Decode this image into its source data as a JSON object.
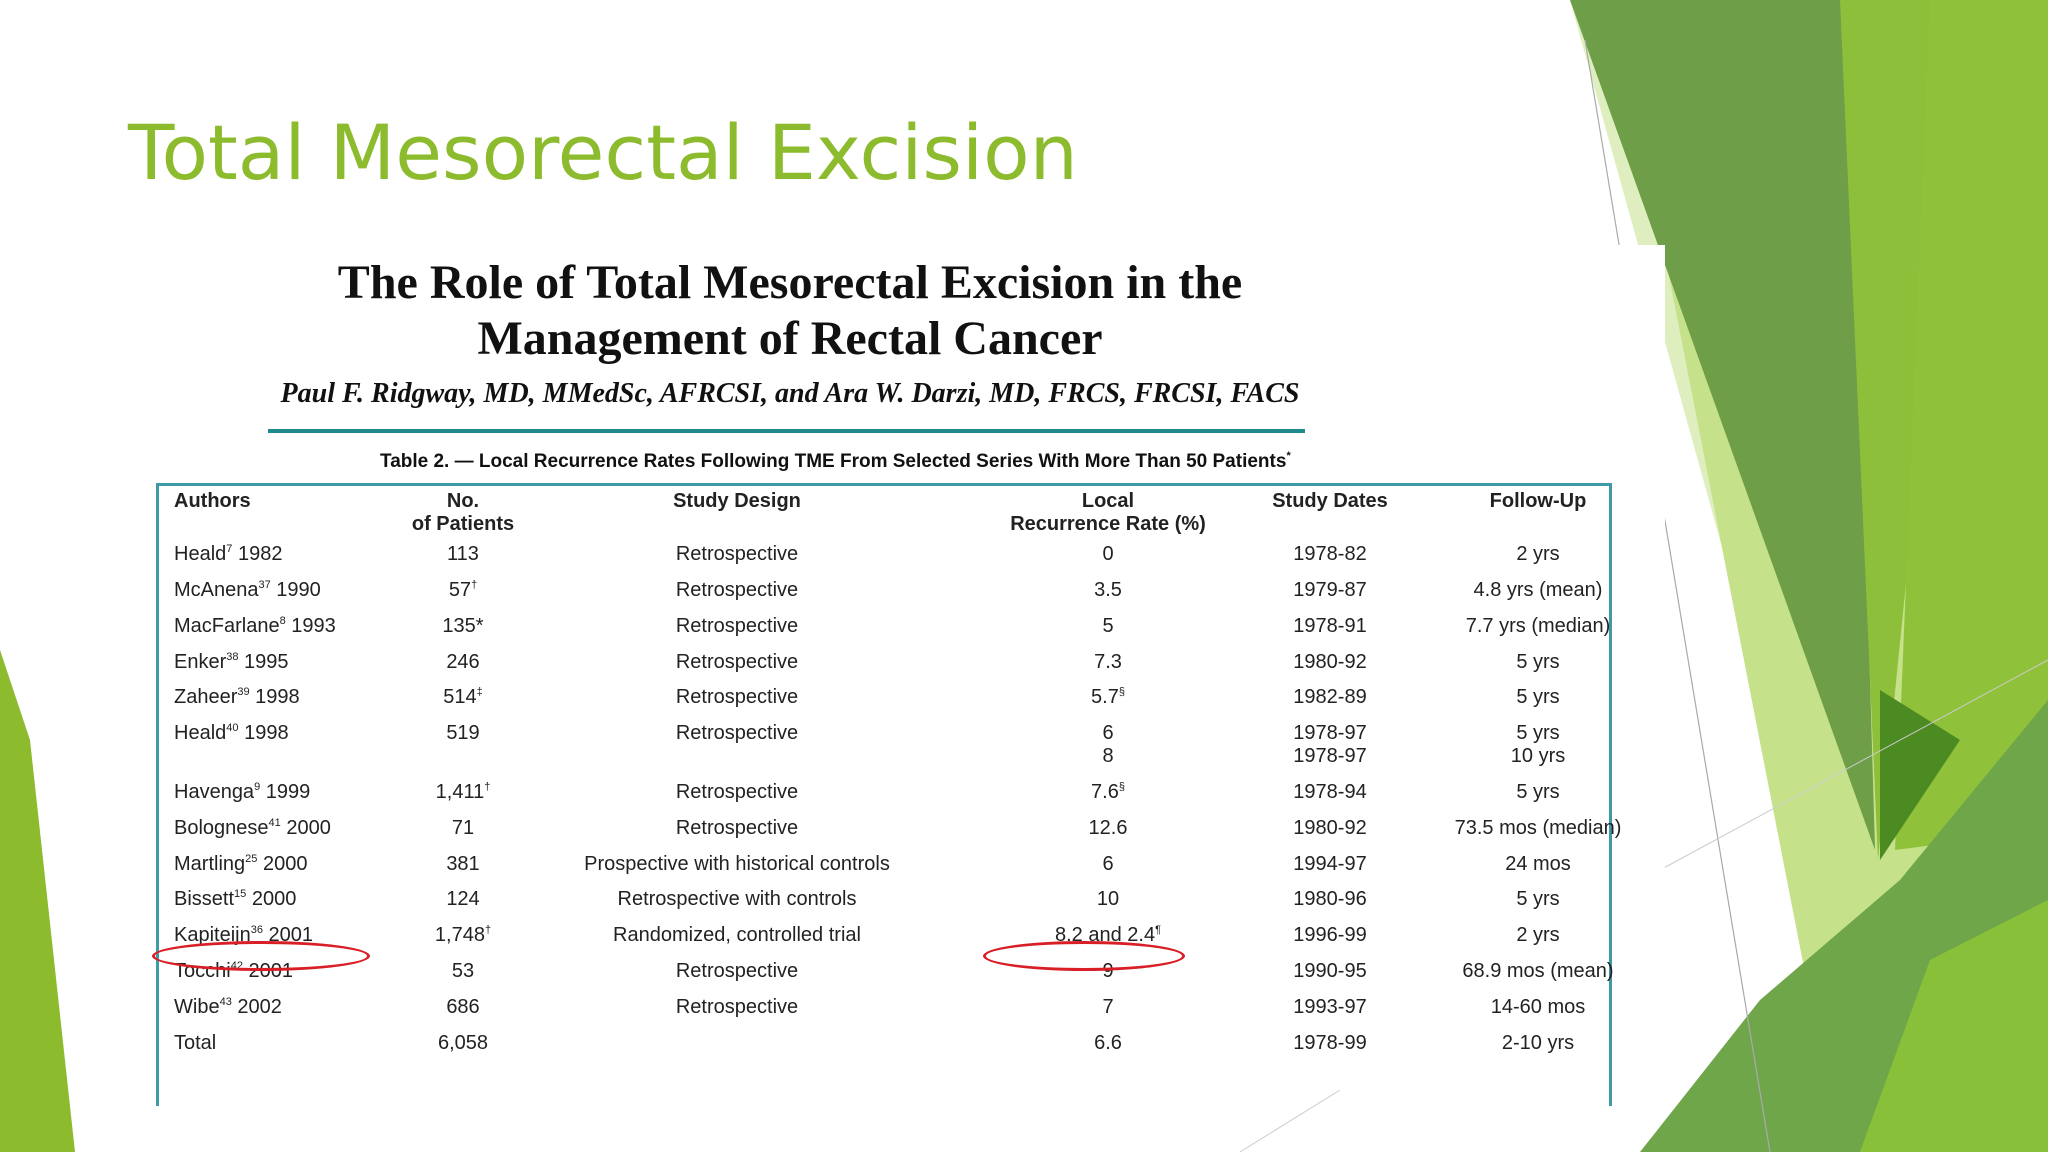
{
  "slide": {
    "title": "Total Mesorectal Excision"
  },
  "paper": {
    "title_line1": "The Role of Total Mesorectal Excision in the",
    "title_line2": "Management of Rectal Cancer",
    "authors": "Paul F. Ridgway, MD, MMedSc, AFRCSI, and Ara W. Darzi, MD, FRCS, FRCSI, FACS"
  },
  "table": {
    "caption": "Table 2. — Local Recurrence Rates Following TME From Selected Series With More Than 50 Patients",
    "caption_mark": "*",
    "headers": [
      {
        "line1": "Authors",
        "line2": ""
      },
      {
        "line1": "No.",
        "line2": "of Patients"
      },
      {
        "line1": "Study Design",
        "line2": ""
      },
      {
        "line1": "Local",
        "line2": "Recurrence Rate (%)"
      },
      {
        "line1": "Study Dates",
        "line2": ""
      },
      {
        "line1": "Follow-Up",
        "line2": ""
      }
    ],
    "rows": [
      {
        "author": "Heald",
        "ref": "7",
        "year": "1982",
        "patients": "113",
        "pmark": "",
        "design": "Retrospective",
        "rate": "0",
        "rmark": "",
        "rate2": "",
        "dates": "1978-82",
        "dates2": "",
        "followup": "2 yrs",
        "followup2": ""
      },
      {
        "author": "McAnena",
        "ref": "37",
        "year": "1990",
        "patients": "57",
        "pmark": "†",
        "design": "Retrospective",
        "rate": "3.5",
        "rmark": "",
        "rate2": "",
        "dates": "1979-87",
        "dates2": "",
        "followup": "4.8 yrs (mean)",
        "followup2": ""
      },
      {
        "author": "MacFarlane",
        "ref": "8",
        "year": "1993",
        "patients": "135*",
        "pmark": "",
        "design": "Retrospective",
        "rate": "5",
        "rmark": "",
        "rate2": "",
        "dates": "1978-91",
        "dates2": "",
        "followup": "7.7 yrs (median)",
        "followup2": ""
      },
      {
        "author": "Enker",
        "ref": "38",
        "year": "1995",
        "patients": "246",
        "pmark": "",
        "design": "Retrospective",
        "rate": "7.3",
        "rmark": "",
        "rate2": "",
        "dates": "1980-92",
        "dates2": "",
        "followup": "5 yrs",
        "followup2": ""
      },
      {
        "author": "Zaheer",
        "ref": "39",
        "year": "1998",
        "patients": "514",
        "pmark": "‡",
        "design": "Retrospective",
        "rate": "5.7",
        "rmark": "§",
        "rate2": "",
        "dates": "1982-89",
        "dates2": "",
        "followup": "5 yrs",
        "followup2": ""
      },
      {
        "author": "Heald",
        "ref": "40",
        "year": "1998",
        "patients": "519",
        "pmark": "",
        "design": "Retrospective",
        "rate": "6",
        "rmark": "",
        "rate2": "8",
        "dates": "1978-97",
        "dates2": "1978-97",
        "followup": "5 yrs",
        "followup2": "10 yrs"
      },
      {
        "author": "Havenga",
        "ref": "9",
        "year": "1999",
        "patients": "1,411",
        "pmark": "†",
        "design": "Retrospective",
        "rate": "7.6",
        "rmark": "§",
        "rate2": "",
        "dates": "1978-94",
        "dates2": "",
        "followup": "5 yrs",
        "followup2": ""
      },
      {
        "author": "Bolognese",
        "ref": "41",
        "year": "2000",
        "patients": "71",
        "pmark": "",
        "design": "Retrospective",
        "rate": "12.6",
        "rmark": "",
        "rate2": "",
        "dates": "1980-92",
        "dates2": "",
        "followup": "73.5 mos (median)",
        "followup2": ""
      },
      {
        "author": "Martling",
        "ref": "25",
        "year": "2000",
        "patients": "381",
        "pmark": "",
        "design": "Prospective with historical controls",
        "rate": "6",
        "rmark": "",
        "rate2": "",
        "dates": "1994-97",
        "dates2": "",
        "followup": "24 mos",
        "followup2": ""
      },
      {
        "author": "Bissett",
        "ref": "15",
        "year": "2000",
        "patients": "124",
        "pmark": "",
        "design": "Retrospective with controls",
        "rate": "10",
        "rmark": "",
        "rate2": "",
        "dates": "1980-96",
        "dates2": "",
        "followup": "5 yrs",
        "followup2": ""
      },
      {
        "author": "Kapiteijn",
        "ref": "36",
        "year": "2001",
        "patients": "1,748",
        "pmark": "†",
        "design": "Randomized, controlled trial",
        "rate": "8.2 and 2.4",
        "rmark": "¶",
        "rate2": "",
        "dates": "1996-99",
        "dates2": "",
        "followup": "2 yrs",
        "followup2": ""
      },
      {
        "author": "Tocchi",
        "ref": "42",
        "year": "2001",
        "patients": "53",
        "pmark": "",
        "design": "Retrospective",
        "rate": "9",
        "rmark": "",
        "rate2": "",
        "dates": "1990-95",
        "dates2": "",
        "followup": "68.9 mos (mean)",
        "followup2": ""
      },
      {
        "author": "Wibe",
        "ref": "43",
        "year": "2002",
        "patients": "686",
        "pmark": "",
        "design": "Retrospective",
        "rate": "7",
        "rmark": "",
        "rate2": "",
        "dates": "1993-97",
        "dates2": "",
        "followup": "14-60 mos",
        "followup2": ""
      },
      {
        "author": "Total",
        "ref": "",
        "year": "",
        "patients": "6,058",
        "pmark": "",
        "design": "",
        "rate": "6.6",
        "rmark": "",
        "rate2": "",
        "dates": "1978-99",
        "dates2": "",
        "followup": "2-10 yrs",
        "followup2": ""
      }
    ]
  },
  "annotations": {
    "highlight_color": "#d81f26",
    "highlighted_row": "Kapiteijn 2001"
  },
  "colors": {
    "title": "#8cbb2e",
    "accent_dark": "#5a8f2e",
    "accent_light": "#a8d14a",
    "table_border": "#3f9aa8"
  }
}
